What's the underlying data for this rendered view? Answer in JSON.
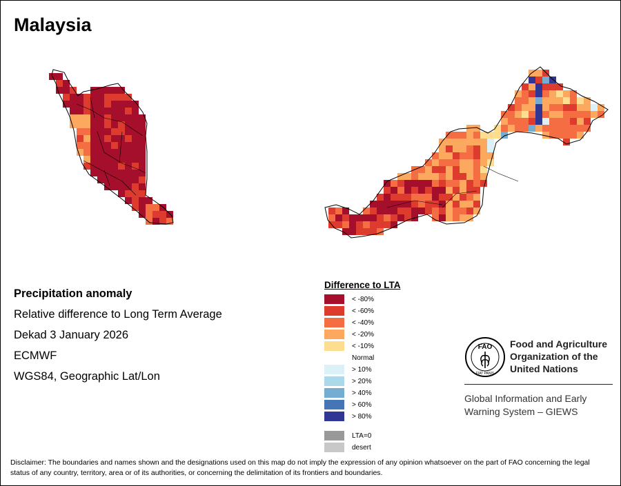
{
  "title": "Malaysia",
  "info": {
    "heading": "Precipitation anomaly",
    "line1": "Relative difference to Long Term Average",
    "line2": "Dekad 3 January 2026",
    "line3": "ECMWF",
    "line4": "WGS84, Geographic Lat/Lon"
  },
  "legend": {
    "title": "Difference to LTA",
    "items": [
      {
        "label": "< -80%",
        "color": "#a50f2b"
      },
      {
        "label": "< -60%",
        "color": "#dc3b2d"
      },
      {
        "label": "< -40%",
        "color": "#f46d43"
      },
      {
        "label": "< -20%",
        "color": "#fca85e"
      },
      {
        "label": "< -10%",
        "color": "#fddd90"
      },
      {
        "label": "Normal",
        "color": "#ffffff"
      },
      {
        "label": "> 10%",
        "color": "#dcf0f7"
      },
      {
        "label": "> 20%",
        "color": "#abd9e9"
      },
      {
        "label": "> 40%",
        "color": "#74add1"
      },
      {
        "label": "> 60%",
        "color": "#4575b4"
      },
      {
        "label": "> 80%",
        "color": "#313695"
      },
      {
        "label": "LTA=0",
        "color": "#999999"
      },
      {
        "label": "desert",
        "color": "#c8c8c8"
      }
    ]
  },
  "fao": {
    "name_line1": "Food and Agriculture",
    "name_line2": "Organization of the",
    "name_line3": "United Nations",
    "logo_text": "FAO",
    "logo_motto": "FIAT PANIS",
    "system_line1": "Global Information and Early",
    "system_line2": "Warning System – GIEWS"
  },
  "disclaimer": "Disclaimer: The boundaries and names shown and the designations used on this map do not imply the expression of any opinion whatsoever on the part of FAO concerning the legal status of any country, territory, area or of its authorities, or concerning the delimitation of its frontiers and boundaries."
}
